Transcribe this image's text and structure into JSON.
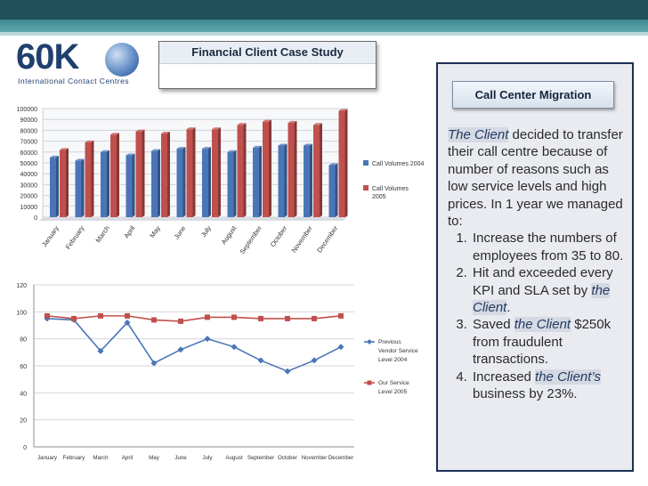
{
  "logo": {
    "text": "60K",
    "subtitle": "International Contact Centres"
  },
  "case_study": {
    "title": "Financial Client Case Study"
  },
  "panel": {
    "title": "Call Center Migration",
    "intro_client": "The Client",
    "intro_text": " decided to transfer their call centre because of number of reasons such as low service levels and high prices. In 1 year we managed to:",
    "items": [
      {
        "pre": "Increase the numbers of employees from 35 to 80.",
        "client": "",
        "post": ""
      },
      {
        "pre": "Hit and exceeded every KPI and SLA set by ",
        "client": "the Client",
        "post": "."
      },
      {
        "pre": "Saved ",
        "client": "the Client",
        "post": " $250k from fraudulent transactions."
      },
      {
        "pre": "Increased ",
        "client": "the Client’s",
        "post": " business by 23%."
      }
    ]
  },
  "chart_data": [
    {
      "type": "bar",
      "categories": [
        "January",
        "February",
        "March",
        "April",
        "May",
        "June",
        "July",
        "August",
        "September",
        "October",
        "November",
        "December"
      ],
      "series": [
        {
          "name": "Call Volumes 2004",
          "color": "#4a76b8",
          "values": [
            55000,
            52000,
            60000,
            57000,
            61000,
            63000,
            63000,
            60000,
            64000,
            66000,
            66000,
            48000
          ]
        },
        {
          "name": "Call Volumes 2005",
          "color": "#c0504d",
          "values": [
            62000,
            69000,
            76000,
            79000,
            77000,
            81000,
            81000,
            85000,
            88000,
            87000,
            85000,
            98000
          ]
        }
      ],
      "ylim": [
        0,
        100000
      ],
      "yticks": [
        "0",
        "10000",
        "20000",
        "30000",
        "40000",
        "50000",
        "60000",
        "70000",
        "80000",
        "90000",
        "100000"
      ],
      "grid": true,
      "legend": "right"
    },
    {
      "type": "line",
      "categories": [
        "January",
        "February",
        "March",
        "April",
        "May",
        "June",
        "July",
        "August",
        "September",
        "October",
        "November",
        "December"
      ],
      "series": [
        {
          "name": "Previous Vendor Service Level 2004",
          "color": "#4a76b8",
          "values": [
            95,
            94,
            71,
            92,
            62,
            72,
            80,
            74,
            64,
            56,
            64,
            74
          ]
        },
        {
          "name": "Our Service Level 2005",
          "color": "#c0504d",
          "values": [
            97,
            95,
            97,
            97,
            94,
            93,
            96,
            96,
            95,
            95,
            95,
            97
          ]
        }
      ],
      "ylim": [
        0,
        120
      ],
      "yticks": [
        "0",
        "20",
        "40",
        "60",
        "80",
        "100",
        "120"
      ],
      "grid": true,
      "legend": "right"
    }
  ]
}
